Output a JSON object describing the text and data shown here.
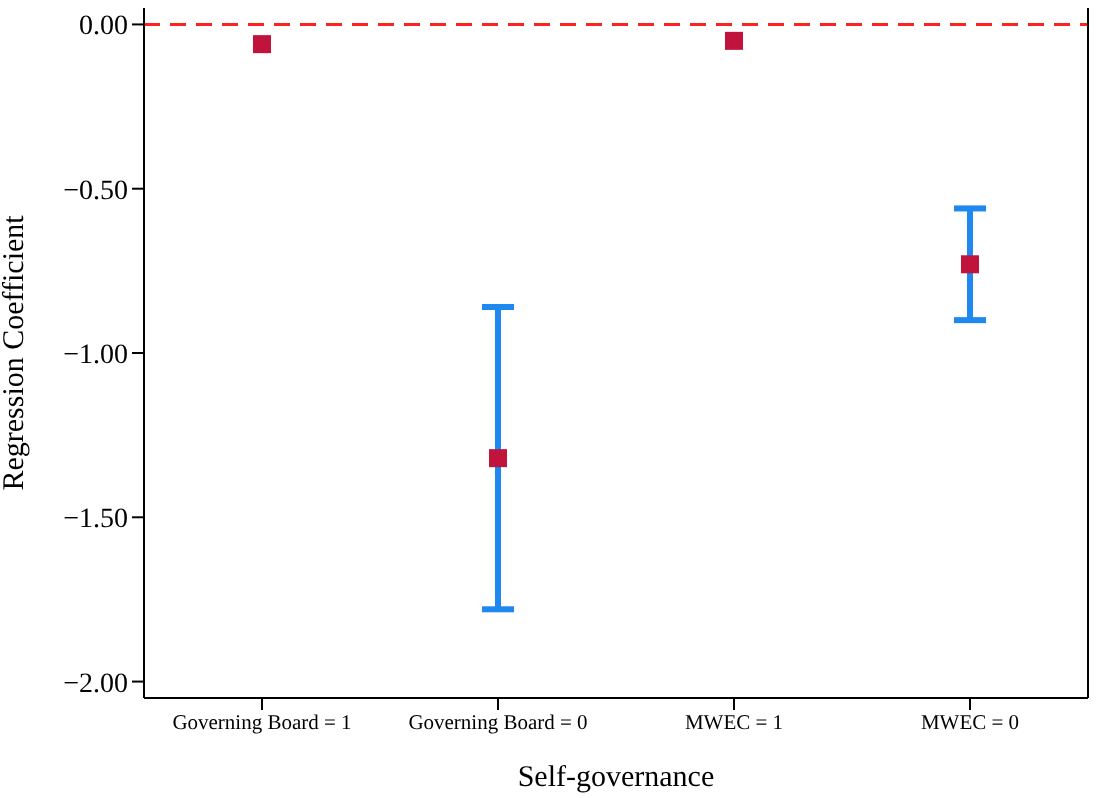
{
  "chart_data": {
    "type": "scatter",
    "xlabel": "Self-governance",
    "ylabel": "Regression Coefficient",
    "categories": [
      "Governing Board = 1",
      "Governing Board = 0",
      "MWEC = 1",
      "MWEC = 0"
    ],
    "series": [
      {
        "color": "#c0143c",
        "values": [
          -0.06,
          -1.32,
          -0.05,
          -0.73
        ],
        "errors": [
          null,
          [
            -1.78,
            -0.86
          ],
          null,
          [
            -0.9,
            -0.56
          ]
        ]
      }
    ],
    "ylim": [
      -2.05,
      0.05
    ],
    "yticks": [
      {
        "value": 0,
        "label": "0.00"
      },
      {
        "value": -0.5,
        "label": "−0.50"
      },
      {
        "value": -1,
        "label": "−1.00"
      },
      {
        "value": -1.5,
        "label": "−1.50"
      },
      {
        "value": -2,
        "label": "−2.00"
      }
    ],
    "ref_lines": [
      {
        "axis": "y",
        "value": 0,
        "color": "#ff2020",
        "line_style": "dashed"
      }
    ],
    "marker": "square",
    "grid": false,
    "legend": false
  }
}
